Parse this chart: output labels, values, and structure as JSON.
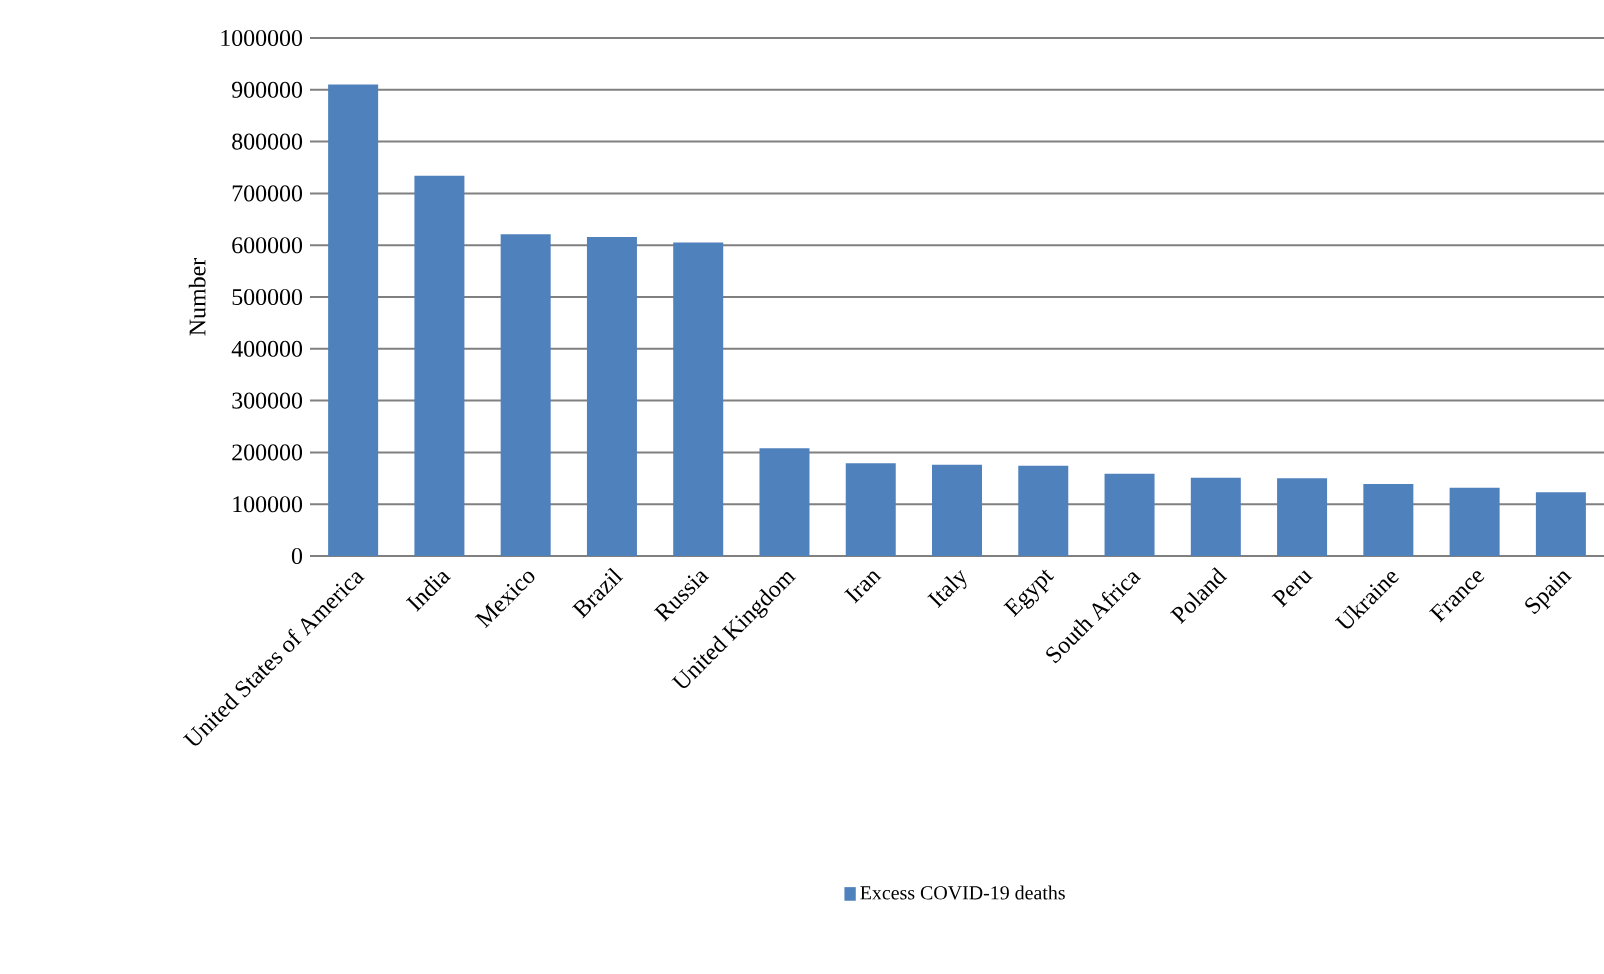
{
  "chart_data": {
    "type": "bar",
    "ylabel": "Number",
    "categories": [
      "United States of America",
      "India",
      "Mexico",
      "Brazil",
      "Russia",
      "United Kingdom",
      "Iran",
      "Italy",
      "Egypt",
      "South Africa",
      "Poland",
      "Peru",
      "Ukraine",
      "France",
      "Spain"
    ],
    "series": [
      {
        "name": "Excess COVID-19 deaths",
        "color": "#4f81bd",
        "values": [
          910000,
          734000,
          621000,
          616000,
          605000,
          208000,
          179000,
          176000,
          174000,
          159000,
          151000,
          150000,
          139000,
          132000,
          123000
        ]
      }
    ],
    "ylim": [
      0,
      1000000
    ],
    "yticks": [
      0,
      100000,
      200000,
      300000,
      400000,
      500000,
      600000,
      700000,
      800000,
      900000,
      1000000
    ],
    "grid": "y",
    "legend": "bottom"
  }
}
